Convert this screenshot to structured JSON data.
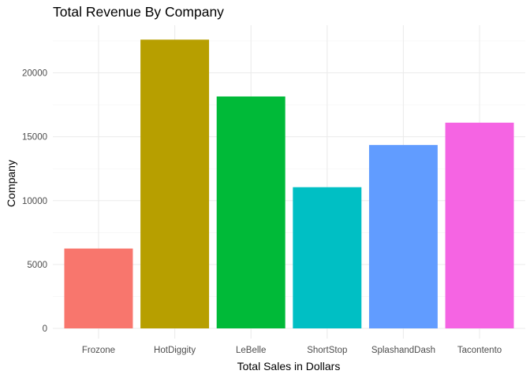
{
  "chart_data": {
    "type": "bar",
    "title": "Total Revenue By Company",
    "xlabel": "Total Sales in Dollars",
    "ylabel": "Company",
    "categories": [
      "Frozone",
      "HotDiggity",
      "LeBelle",
      "ShortStop",
      "SplashandDash",
      "Tacontento"
    ],
    "values": [
      6250,
      22600,
      18150,
      11050,
      14350,
      16100
    ],
    "colors": [
      "#F8766D",
      "#B79F00",
      "#00BA38",
      "#00BFC4",
      "#619CFF",
      "#F564E3"
    ],
    "yticks": [
      "0",
      "5000",
      "10000",
      "15000",
      "20000"
    ],
    "ylim": [
      0,
      23700
    ],
    "grid": true,
    "legend": "none"
  }
}
